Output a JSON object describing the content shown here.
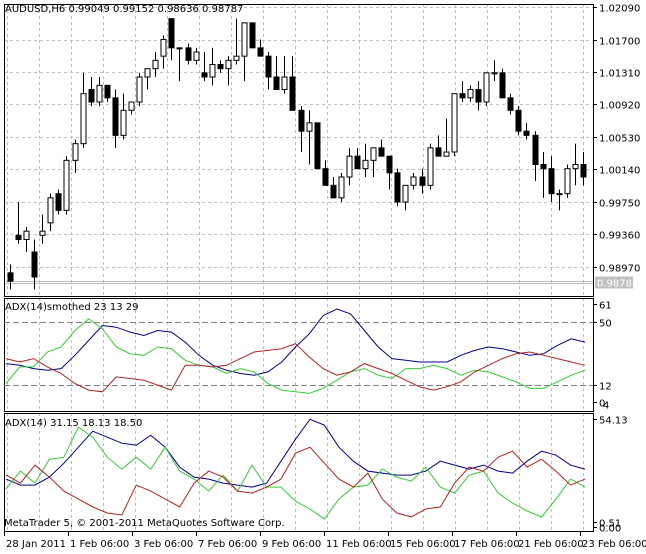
{
  "window": {
    "symbol_header": "AUDUSD,H6  0.99049 0.99152 0.98636 0.98787",
    "copyright": "MetaTrader 5, © 2001-2011 MetaQuotes Software Corp."
  },
  "colors": {
    "adx_main": "#00008B",
    "plus_di": "#32CD32",
    "minus_di": "#B22222",
    "grid": "#C0C0C0",
    "bid_label_bg": "#C0C0C0"
  },
  "chart_data": [
    {
      "type": "candlestick",
      "title": "AUDUSD,H6",
      "ohlc_header": {
        "open": 0.99049,
        "high": 0.99152,
        "low": 0.98636,
        "close": 0.98787
      },
      "y_ticks": [
        "1.02090",
        "1.01700",
        "1.01310",
        "1.00920",
        "1.00530",
        "1.00140",
        "0.99750",
        "0.99360",
        "0.98970"
      ],
      "current_price_label": "0.98786",
      "ylim": [
        0.9865,
        1.0215
      ],
      "grid": true,
      "candles": [
        [
          0.989,
          0.99,
          0.987,
          0.988
        ],
        [
          0.9935,
          0.9975,
          0.9925,
          0.993
        ],
        [
          0.993,
          0.9945,
          0.9915,
          0.994
        ],
        [
          0.9915,
          0.993,
          0.987,
          0.9885
        ],
        [
          0.9935,
          0.996,
          0.9925,
          0.994
        ],
        [
          0.995,
          0.9985,
          0.994,
          0.998
        ],
        [
          0.9985,
          0.999,
          0.996,
          0.9965
        ],
        [
          0.9965,
          1.003,
          0.996,
          1.0025
        ],
        [
          1.0025,
          1.005,
          1.001,
          1.0045
        ],
        [
          1.0045,
          1.013,
          1.004,
          1.0105
        ],
        [
          1.011,
          1.0125,
          1.009,
          1.0095
        ],
        [
          1.0095,
          1.0125,
          1.009,
          1.0115
        ],
        [
          1.0115,
          1.0115,
          1.0095,
          1.01
        ],
        [
          1.01,
          1.011,
          1.004,
          1.0055
        ],
        [
          1.0055,
          1.0105,
          1.005,
          1.0085
        ],
        [
          1.0085,
          1.0095,
          1.008,
          1.0095
        ],
        [
          1.0095,
          1.013,
          1.009,
          1.0125
        ],
        [
          1.0125,
          1.0135,
          1.011,
          1.0135
        ],
        [
          1.0135,
          1.0155,
          1.0125,
          1.0145
        ],
        [
          1.015,
          1.0175,
          1.0135,
          1.017
        ],
        [
          1.0195,
          1.0185,
          1.0145,
          1.016
        ],
        [
          1.016,
          1.016,
          1.012,
          1.016
        ],
        [
          1.016,
          1.0165,
          1.014,
          1.0145
        ],
        [
          1.0145,
          1.016,
          1.014,
          1.0155
        ],
        [
          1.013,
          1.0155,
          1.012,
          1.0125
        ],
        [
          1.0125,
          1.016,
          1.0115,
          1.014
        ],
        [
          1.014,
          1.0145,
          1.013,
          1.0135
        ],
        [
          1.0135,
          1.015,
          1.0115,
          1.0145
        ],
        [
          1.0145,
          1.0195,
          1.014,
          1.015
        ],
        [
          1.015,
          1.019,
          1.012,
          1.019
        ],
        [
          1.019,
          1.0185,
          1.016,
          1.016
        ],
        [
          1.016,
          1.017,
          1.015,
          1.015
        ],
        [
          1.015,
          1.0155,
          1.011,
          1.0125
        ],
        [
          1.0125,
          1.015,
          1.011,
          1.011
        ],
        [
          1.011,
          1.015,
          1.0105,
          1.0125
        ],
        [
          1.0125,
          1.015,
          1.0085,
          1.0085
        ],
        [
          1.0085,
          1.009,
          1.0035,
          1.006
        ],
        [
          1.006,
          1.0085,
          1.002,
          1.007
        ],
        [
          1.007,
          1.007,
          1.0015,
          1.0015
        ],
        [
          1.0015,
          1.0025,
          0.9995,
          0.9995
        ],
        [
          0.9995,
          1.0005,
          0.998,
          0.998
        ],
        [
          0.998,
          1.001,
          0.9975,
          1.0005
        ],
        [
          1.0005,
          1.004,
          0.9995,
          1.003
        ],
        [
          1.003,
          1.004,
          1.0015,
          1.0015
        ],
        [
          1.0015,
          1.0045,
          1.0005,
          1.0025
        ],
        [
          1.0025,
          1.0035,
          1.0005,
          1.004
        ],
        [
          1.004,
          1.005,
          1.003,
          1.003
        ],
        [
          1.003,
          1.003,
          0.999,
          1.001
        ],
        [
          1.001,
          1.0015,
          0.997,
          0.9975
        ],
        [
          0.9975,
          0.9995,
          0.9965,
          0.9995
        ],
        [
          0.9995,
          1.001,
          0.999,
          1.0005
        ],
        [
          1.0005,
          1.0015,
          0.9985,
          0.9995
        ],
        [
          0.9995,
          1.0045,
          0.999,
          1.004
        ],
        [
          1.004,
          1.0055,
          1.0035,
          1.003
        ],
        [
          1.003,
          1.0075,
          1.003,
          1.0035
        ],
        [
          1.0035,
          1.01,
          1.003,
          1.0105
        ],
        [
          1.0105,
          1.012,
          1.0095,
          1.01
        ],
        [
          1.01,
          1.0115,
          1.0095,
          1.011
        ],
        [
          1.011,
          1.012,
          1.0085,
          1.0095
        ],
        [
          1.0095,
          1.013,
          1.009,
          1.013
        ],
        [
          1.013,
          1.0145,
          1.012,
          1.013
        ],
        [
          1.013,
          1.0135,
          1.01,
          1.01
        ],
        [
          1.01,
          1.0105,
          1.008,
          1.0085
        ],
        [
          1.0085,
          1.009,
          1.0055,
          1.006
        ],
        [
          1.006,
          1.007,
          1.005,
          1.0055
        ],
        [
          1.0055,
          1.006,
          1.0,
          1.002
        ],
        [
          1.002,
          1.0035,
          0.998,
          1.0015
        ],
        [
          1.0015,
          1.003,
          0.9975,
          0.9985
        ],
        [
          0.9985,
          0.999,
          0.9965,
          0.9985
        ],
        [
          0.9985,
          1.002,
          0.998,
          1.0015
        ],
        [
          1.0015,
          1.0045,
          0.9995,
          1.002
        ],
        [
          1.002,
          1.0035,
          0.9995,
          1.0005
        ]
      ]
    },
    {
      "type": "line",
      "title": "ADX(14)smothed 23 13 29",
      "y_ticks": [
        "61",
        "50",
        "12",
        "0",
        "4"
      ],
      "ylim": [
        0,
        61
      ],
      "grid": true,
      "series": [
        {
          "name": "ADX",
          "color": "#00008B",
          "values": [
            25,
            24,
            22,
            21,
            22,
            30,
            39,
            48,
            47,
            44,
            42,
            45,
            44,
            38,
            30,
            24,
            21,
            19,
            18,
            20,
            26,
            35,
            43,
            54,
            58,
            55,
            45,
            35,
            28,
            27,
            26,
            26,
            26,
            30,
            33,
            35,
            34,
            32,
            30,
            31,
            36,
            40,
            38
          ]
        },
        {
          "name": "+DI",
          "color": "#32CD32",
          "values": [
            13,
            23,
            23,
            32,
            35,
            45,
            52,
            46,
            35,
            31,
            30,
            35,
            34,
            27,
            24,
            23,
            19,
            22,
            20,
            13,
            9,
            8,
            7,
            10,
            15,
            20,
            22,
            18,
            16,
            22,
            22,
            24,
            22,
            18,
            21,
            20,
            17,
            14,
            10,
            10,
            14,
            18,
            21
          ]
        },
        {
          "name": "-DI",
          "color": "#B22222",
          "values": [
            28,
            26,
            28,
            23,
            19,
            13,
            9,
            8,
            17,
            16,
            15,
            12,
            9,
            24,
            24,
            23,
            24,
            28,
            32,
            33,
            34,
            37,
            29,
            22,
            18,
            20,
            25,
            22,
            19,
            15,
            11,
            9,
            11,
            14,
            20,
            24,
            28,
            31,
            32,
            30,
            28,
            26,
            24
          ]
        }
      ]
    },
    {
      "type": "line",
      "title": "ADX(14) 31.15 18.13 18.50",
      "y_ticks": [
        "54.13",
        "0.51",
        "0.00"
      ],
      "ylim": [
        0,
        54.13
      ],
      "grid": true,
      "series": [
        {
          "name": "ADX",
          "color": "#00008B",
          "values": [
            24,
            21,
            21,
            25,
            32,
            40,
            48,
            45,
            42,
            41,
            46,
            40,
            30,
            25,
            24,
            22,
            21,
            20,
            22,
            33,
            44,
            54,
            51,
            40,
            33,
            28,
            27,
            26,
            26,
            28,
            33,
            31,
            29,
            31,
            28,
            27,
            33,
            38,
            36,
            31,
            29
          ]
        },
        {
          "name": "+DI",
          "color": "#32CD32",
          "values": [
            19,
            28,
            22,
            34,
            35,
            50,
            45,
            35,
            29,
            35,
            29,
            40,
            28,
            24,
            18,
            26,
            18,
            31,
            20,
            20,
            13,
            9,
            4,
            14,
            20,
            21,
            29,
            25,
            23,
            30,
            20,
            17,
            26,
            28,
            17,
            12,
            8,
            5,
            14,
            24,
            20
          ]
        },
        {
          "name": "-DI",
          "color": "#B22222",
          "values": [
            26,
            22,
            31,
            25,
            18,
            14,
            10,
            7,
            6,
            21,
            18,
            14,
            10,
            22,
            28,
            25,
            18,
            17,
            20,
            24,
            37,
            40,
            32,
            24,
            20,
            27,
            14,
            7,
            5,
            9,
            10,
            22,
            30,
            28,
            35,
            38,
            30,
            34,
            28,
            21,
            24
          ]
        }
      ]
    }
  ],
  "x_axis": {
    "labels": [
      "28 Jan 2011",
      "1 Feb 06:00",
      "3 Feb 06:00",
      "7 Feb 06:00",
      "9 Feb 06:00",
      "11 Feb 06:00",
      "15 Feb 06:00",
      "17 Feb 06:00",
      "21 Feb 06:00",
      "23 Feb 06:00"
    ]
  }
}
